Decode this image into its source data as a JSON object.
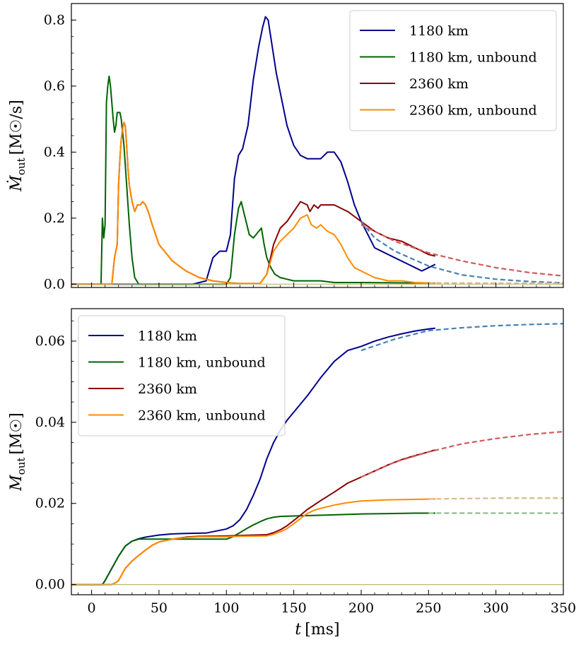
{
  "chart_data": [
    {
      "type": "line",
      "panel": "top",
      "ylabel": "Ṁ_out [M☉/s]",
      "ylabel_parts": {
        "main": "Ṁ",
        "sub": "out",
        "unit": "[M☉/s]"
      },
      "xlim": [
        -15,
        350
      ],
      "ylim": [
        -0.01,
        0.85
      ],
      "yticks": [
        0.0,
        0.2,
        0.4,
        0.6,
        0.8
      ],
      "ytick_labels": [
        "0.0",
        "0.2",
        "0.4",
        "0.6",
        "0.8"
      ],
      "xticks": [
        0,
        50,
        100,
        150,
        200,
        250,
        300,
        350
      ],
      "legend_position": "top-right",
      "grid": false,
      "series": [
        {
          "name": "1180 km",
          "color": "#00008b",
          "x": [
            -15,
            75,
            85,
            90,
            95,
            100,
            103,
            106,
            109,
            112,
            116,
            120,
            124,
            127,
            129,
            131,
            134,
            137,
            140,
            145,
            150,
            155,
            160,
            165,
            170,
            175,
            180,
            185,
            190,
            195,
            200,
            205,
            210,
            215,
            220,
            225,
            230,
            235,
            240,
            245,
            250,
            255
          ],
          "y": [
            0.0,
            0.0,
            0.01,
            0.08,
            0.1,
            0.1,
            0.15,
            0.32,
            0.39,
            0.41,
            0.48,
            0.62,
            0.72,
            0.78,
            0.81,
            0.8,
            0.72,
            0.64,
            0.58,
            0.48,
            0.42,
            0.39,
            0.38,
            0.38,
            0.38,
            0.4,
            0.4,
            0.37,
            0.31,
            0.24,
            0.19,
            0.15,
            0.11,
            0.1,
            0.09,
            0.08,
            0.07,
            0.06,
            0.05,
            0.04,
            0.05,
            0.06
          ]
        },
        {
          "name": "1180 km, unbound",
          "color": "#006400",
          "x": [
            -15,
            7,
            8,
            9,
            10,
            11,
            12,
            13,
            14,
            15,
            16,
            17,
            18,
            19,
            20,
            21,
            22,
            24,
            26,
            28,
            30,
            32,
            35,
            38,
            40,
            45,
            80,
            100,
            103,
            106,
            109,
            111,
            114,
            117,
            120,
            124,
            126,
            128,
            130,
            133,
            136,
            140,
            145,
            150,
            155,
            160,
            170,
            180,
            190,
            200,
            255
          ],
          "y": [
            0.0,
            0.0,
            0.2,
            0.14,
            0.18,
            0.55,
            0.6,
            0.63,
            0.6,
            0.55,
            0.5,
            0.46,
            0.48,
            0.52,
            0.52,
            0.52,
            0.5,
            0.42,
            0.3,
            0.18,
            0.08,
            0.02,
            0.0,
            0.0,
            0.0,
            0.0,
            0.0,
            0.0,
            0.02,
            0.15,
            0.23,
            0.25,
            0.2,
            0.15,
            0.14,
            0.16,
            0.17,
            0.12,
            0.08,
            0.05,
            0.03,
            0.02,
            0.015,
            0.01,
            0.01,
            0.01,
            0.01,
            0.005,
            0.005,
            0.005,
            0.003
          ]
        },
        {
          "name": "2360 km",
          "color": "#8b0000",
          "x": [
            -15,
            15,
            17,
            18,
            19,
            20,
            21,
            22,
            23,
            24,
            25,
            26,
            27,
            28,
            30,
            32,
            34,
            36,
            38,
            40,
            42,
            45,
            50,
            60,
            70,
            80,
            90,
            100,
            110,
            125,
            130,
            135,
            140,
            145,
            150,
            155,
            160,
            162,
            165,
            168,
            170,
            175,
            180,
            190,
            200,
            210,
            220,
            230,
            240,
            250,
            255
          ],
          "y": [
            0.0,
            0.0,
            0.08,
            0.1,
            0.12,
            0.3,
            0.38,
            0.44,
            0.47,
            0.49,
            0.48,
            0.42,
            0.35,
            0.3,
            0.25,
            0.22,
            0.24,
            0.24,
            0.25,
            0.24,
            0.22,
            0.18,
            0.12,
            0.07,
            0.04,
            0.02,
            0.01,
            0.005,
            0.002,
            0.002,
            0.03,
            0.12,
            0.17,
            0.19,
            0.22,
            0.25,
            0.24,
            0.22,
            0.24,
            0.23,
            0.24,
            0.24,
            0.24,
            0.22,
            0.19,
            0.16,
            0.14,
            0.13,
            0.11,
            0.09,
            0.085
          ]
        },
        {
          "name": "2360 km, unbound",
          "color": "#ff8c00",
          "x": [
            -15,
            15,
            17,
            18,
            19,
            20,
            21,
            22,
            23,
            24,
            25,
            26,
            27,
            28,
            30,
            32,
            34,
            36,
            38,
            40,
            42,
            45,
            50,
            60,
            70,
            80,
            90,
            100,
            110,
            125,
            130,
            135,
            140,
            145,
            150,
            155,
            160,
            163,
            167,
            170,
            175,
            180,
            185,
            190,
            195,
            200,
            210,
            220,
            230,
            240,
            255
          ],
          "y": [
            0.0,
            0.0,
            0.08,
            0.1,
            0.12,
            0.3,
            0.38,
            0.44,
            0.47,
            0.49,
            0.48,
            0.42,
            0.35,
            0.3,
            0.25,
            0.22,
            0.24,
            0.24,
            0.25,
            0.24,
            0.22,
            0.18,
            0.12,
            0.07,
            0.04,
            0.02,
            0.01,
            0.005,
            0.002,
            0.002,
            0.03,
            0.1,
            0.13,
            0.15,
            0.17,
            0.2,
            0.21,
            0.18,
            0.17,
            0.18,
            0.16,
            0.15,
            0.12,
            0.08,
            0.05,
            0.04,
            0.02,
            0.01,
            0.01,
            0.005,
            0.003
          ]
        },
        {
          "name": "",
          "color": "#4682b4",
          "dashed": true,
          "x": [
            200,
            210,
            225,
            250,
            275,
            300,
            325,
            350
          ],
          "y": [
            0.19,
            0.14,
            0.1,
            0.055,
            0.028,
            0.015,
            0.008,
            0.004
          ]
        },
        {
          "name": "",
          "color": "#cd5c5c",
          "dashed": true,
          "x": [
            200,
            225,
            250,
            275,
            300,
            325,
            350
          ],
          "y": [
            0.18,
            0.13,
            0.095,
            0.07,
            0.05,
            0.035,
            0.025
          ]
        },
        {
          "name": "",
          "color": "#8fbc8f",
          "dashed": true,
          "x": [
            250,
            300,
            350
          ],
          "y": [
            0.003,
            0.002,
            0.002
          ]
        },
        {
          "name": "",
          "color": "#deb887",
          "dashed": true,
          "x": [
            250,
            300,
            350
          ],
          "y": [
            0.004,
            0.003,
            0.003
          ]
        },
        {
          "name": "",
          "color": "#bdb76b",
          "x": [
            -15,
            350
          ],
          "y": [
            0.0,
            0.0
          ]
        }
      ]
    },
    {
      "type": "line",
      "panel": "bottom",
      "xlabel": "t [ms]",
      "xlabel_parts": {
        "main": "t",
        "unit": "[ms]"
      },
      "ylabel": "M_out [M☉]",
      "ylabel_parts": {
        "main": "M",
        "sub": "out",
        "unit": "[M☉]"
      },
      "xlim": [
        -15,
        350
      ],
      "ylim": [
        -0.0025,
        0.068
      ],
      "yticks": [
        0.0,
        0.02,
        0.04,
        0.06
      ],
      "ytick_labels": [
        "0.00",
        "0.02",
        "0.04",
        "0.06"
      ],
      "xticks": [
        0,
        50,
        100,
        150,
        200,
        250,
        300,
        350
      ],
      "xtick_labels": [
        "0",
        "50",
        "100",
        "150",
        "200",
        "250",
        "300",
        "350"
      ],
      "legend_position": "top-left",
      "grid": false,
      "series": [
        {
          "name": "1180 km",
          "color": "#00008b",
          "x": [
            -15,
            8,
            10,
            15,
            20,
            25,
            30,
            35,
            40,
            50,
            60,
            70,
            85,
            100,
            105,
            110,
            115,
            120,
            125,
            130,
            135,
            140,
            145,
            150,
            155,
            160,
            170,
            180,
            190,
            200,
            210,
            220,
            230,
            240,
            250,
            255
          ],
          "y": [
            0.0,
            0.0,
            0.001,
            0.004,
            0.007,
            0.0095,
            0.0107,
            0.0113,
            0.0117,
            0.0122,
            0.0125,
            0.0126,
            0.0127,
            0.0137,
            0.0145,
            0.016,
            0.0185,
            0.022,
            0.026,
            0.031,
            0.035,
            0.038,
            0.0405,
            0.0425,
            0.0445,
            0.0465,
            0.051,
            0.055,
            0.0577,
            0.0587,
            0.06,
            0.061,
            0.0618,
            0.0625,
            0.063,
            0.0632
          ]
        },
        {
          "name": "1180 km, unbound",
          "color": "#006400",
          "x": [
            -15,
            8,
            10,
            15,
            20,
            25,
            30,
            35,
            40,
            100,
            105,
            110,
            115,
            120,
            125,
            130,
            135,
            140,
            150,
            160,
            180,
            200,
            220,
            240,
            255
          ],
          "y": [
            0.0,
            0.0,
            0.001,
            0.004,
            0.007,
            0.0095,
            0.0107,
            0.0112,
            0.0112,
            0.0112,
            0.0118,
            0.0128,
            0.0138,
            0.0147,
            0.0155,
            0.0162,
            0.0166,
            0.0168,
            0.0169,
            0.017,
            0.0172,
            0.0174,
            0.0175,
            0.0176,
            0.0176
          ]
        },
        {
          "name": "2360 km",
          "color": "#8b0000",
          "x": [
            -15,
            15,
            18,
            20,
            25,
            30,
            35,
            40,
            45,
            50,
            60,
            70,
            80,
            100,
            110,
            130,
            135,
            140,
            145,
            150,
            155,
            160,
            170,
            180,
            190,
            200,
            210,
            220,
            230,
            240,
            250,
            255
          ],
          "y": [
            0.0,
            0.0,
            0.0005,
            0.001,
            0.004,
            0.0058,
            0.0072,
            0.0085,
            0.0097,
            0.0105,
            0.0112,
            0.0117,
            0.0119,
            0.012,
            0.0121,
            0.0123,
            0.0128,
            0.0135,
            0.0145,
            0.0158,
            0.0171,
            0.0185,
            0.0207,
            0.0228,
            0.025,
            0.0265,
            0.028,
            0.0295,
            0.0308,
            0.0318,
            0.0327,
            0.0332
          ]
        },
        {
          "name": "2360 km, unbound",
          "color": "#ff8c00",
          "x": [
            -15,
            15,
            18,
            20,
            25,
            30,
            35,
            40,
            45,
            50,
            60,
            70,
            80,
            100,
            110,
            130,
            135,
            140,
            145,
            150,
            155,
            160,
            165,
            170,
            180,
            190,
            200,
            220,
            240,
            255
          ],
          "y": [
            0.0,
            0.0,
            0.0005,
            0.001,
            0.004,
            0.0058,
            0.0072,
            0.0085,
            0.0097,
            0.0105,
            0.0112,
            0.0116,
            0.0118,
            0.0118,
            0.0119,
            0.012,
            0.0124,
            0.013,
            0.0138,
            0.015,
            0.0163,
            0.0175,
            0.0183,
            0.0188,
            0.0196,
            0.0202,
            0.0206,
            0.0209,
            0.021,
            0.0211
          ]
        },
        {
          "name": "",
          "color": "#4682b4",
          "dashed": true,
          "x": [
            200,
            225,
            250,
            275,
            300,
            325,
            350
          ],
          "y": [
            0.0577,
            0.0605,
            0.0626,
            0.0633,
            0.0638,
            0.0641,
            0.0643
          ]
        },
        {
          "name": "",
          "color": "#cd5c5c",
          "dashed": true,
          "x": [
            200,
            225,
            250,
            275,
            300,
            325,
            350
          ],
          "y": [
            0.0265,
            0.0302,
            0.0327,
            0.0347,
            0.036,
            0.037,
            0.0377
          ]
        },
        {
          "name": "",
          "color": "#8fbc8f",
          "dashed": true,
          "x": [
            250,
            300,
            350
          ],
          "y": [
            0.0176,
            0.0176,
            0.0176
          ]
        },
        {
          "name": "",
          "color": "#deb887",
          "dashed": true,
          "x": [
            250,
            300,
            350
          ],
          "y": [
            0.0211,
            0.0213,
            0.0213
          ]
        },
        {
          "name": "",
          "color": "#bdb76b",
          "x": [
            -15,
            350
          ],
          "y": [
            0.0,
            0.0
          ]
        }
      ]
    }
  ]
}
